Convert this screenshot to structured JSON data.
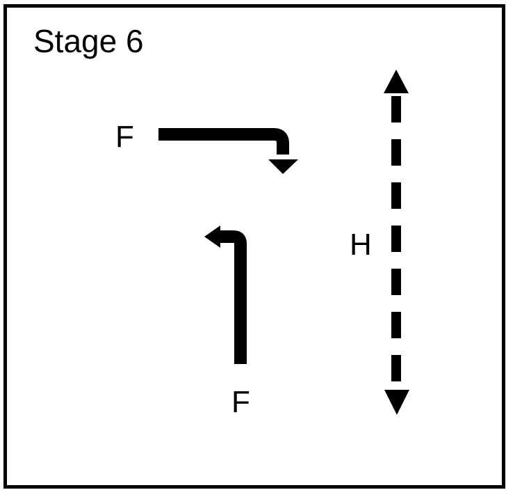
{
  "stage": {
    "title": "Stage 6"
  },
  "labels": {
    "top_flow": "F",
    "bottom_flow": "F",
    "vertical_flow": "H"
  },
  "arrows": [
    {
      "name": "top-right-turn-arrow",
      "style": "solid",
      "movement": "straight-then-right-turn-down"
    },
    {
      "name": "bottom-left-turn-arrow",
      "style": "solid",
      "movement": "up-then-left-turn"
    },
    {
      "name": "vertical-two-way-arrow",
      "style": "dashed",
      "movement": "two-way-vertical"
    }
  ],
  "colors": {
    "line": "#000000",
    "background": "#ffffff"
  }
}
